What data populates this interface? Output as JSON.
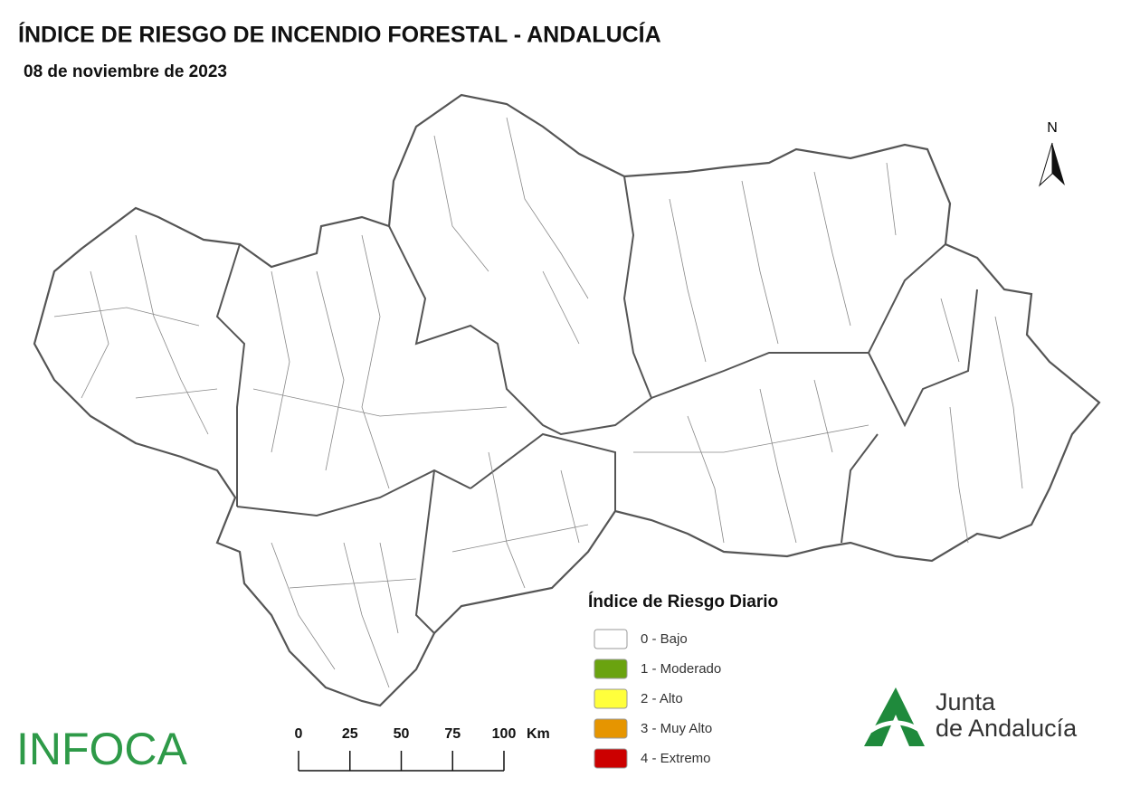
{
  "header": {
    "title": "ÍNDICE DE RIESGO DE INCENDIO FORESTAL - ANDALUCÍA",
    "date": "08 de noviembre de 2023"
  },
  "north": "N",
  "legend": {
    "title": "Índice de Riesgo Diario",
    "items": [
      {
        "label": "0 - Bajo",
        "color": "#ffffff"
      },
      {
        "label": "1 - Moderado",
        "color": "#6aa30f"
      },
      {
        "label": "2 - Alto",
        "color": "#ffff3c"
      },
      {
        "label": "3 - Muy Alto",
        "color": "#e69500"
      },
      {
        "label": "4 - Extremo",
        "color": "#cc0000"
      }
    ]
  },
  "scale": {
    "ticks": [
      0,
      25,
      50,
      75,
      100
    ],
    "unit": "Km"
  },
  "logos": {
    "infoca": "INFOCA",
    "junta_line1": "Junta",
    "junta_line2": "de Andalucía"
  }
}
